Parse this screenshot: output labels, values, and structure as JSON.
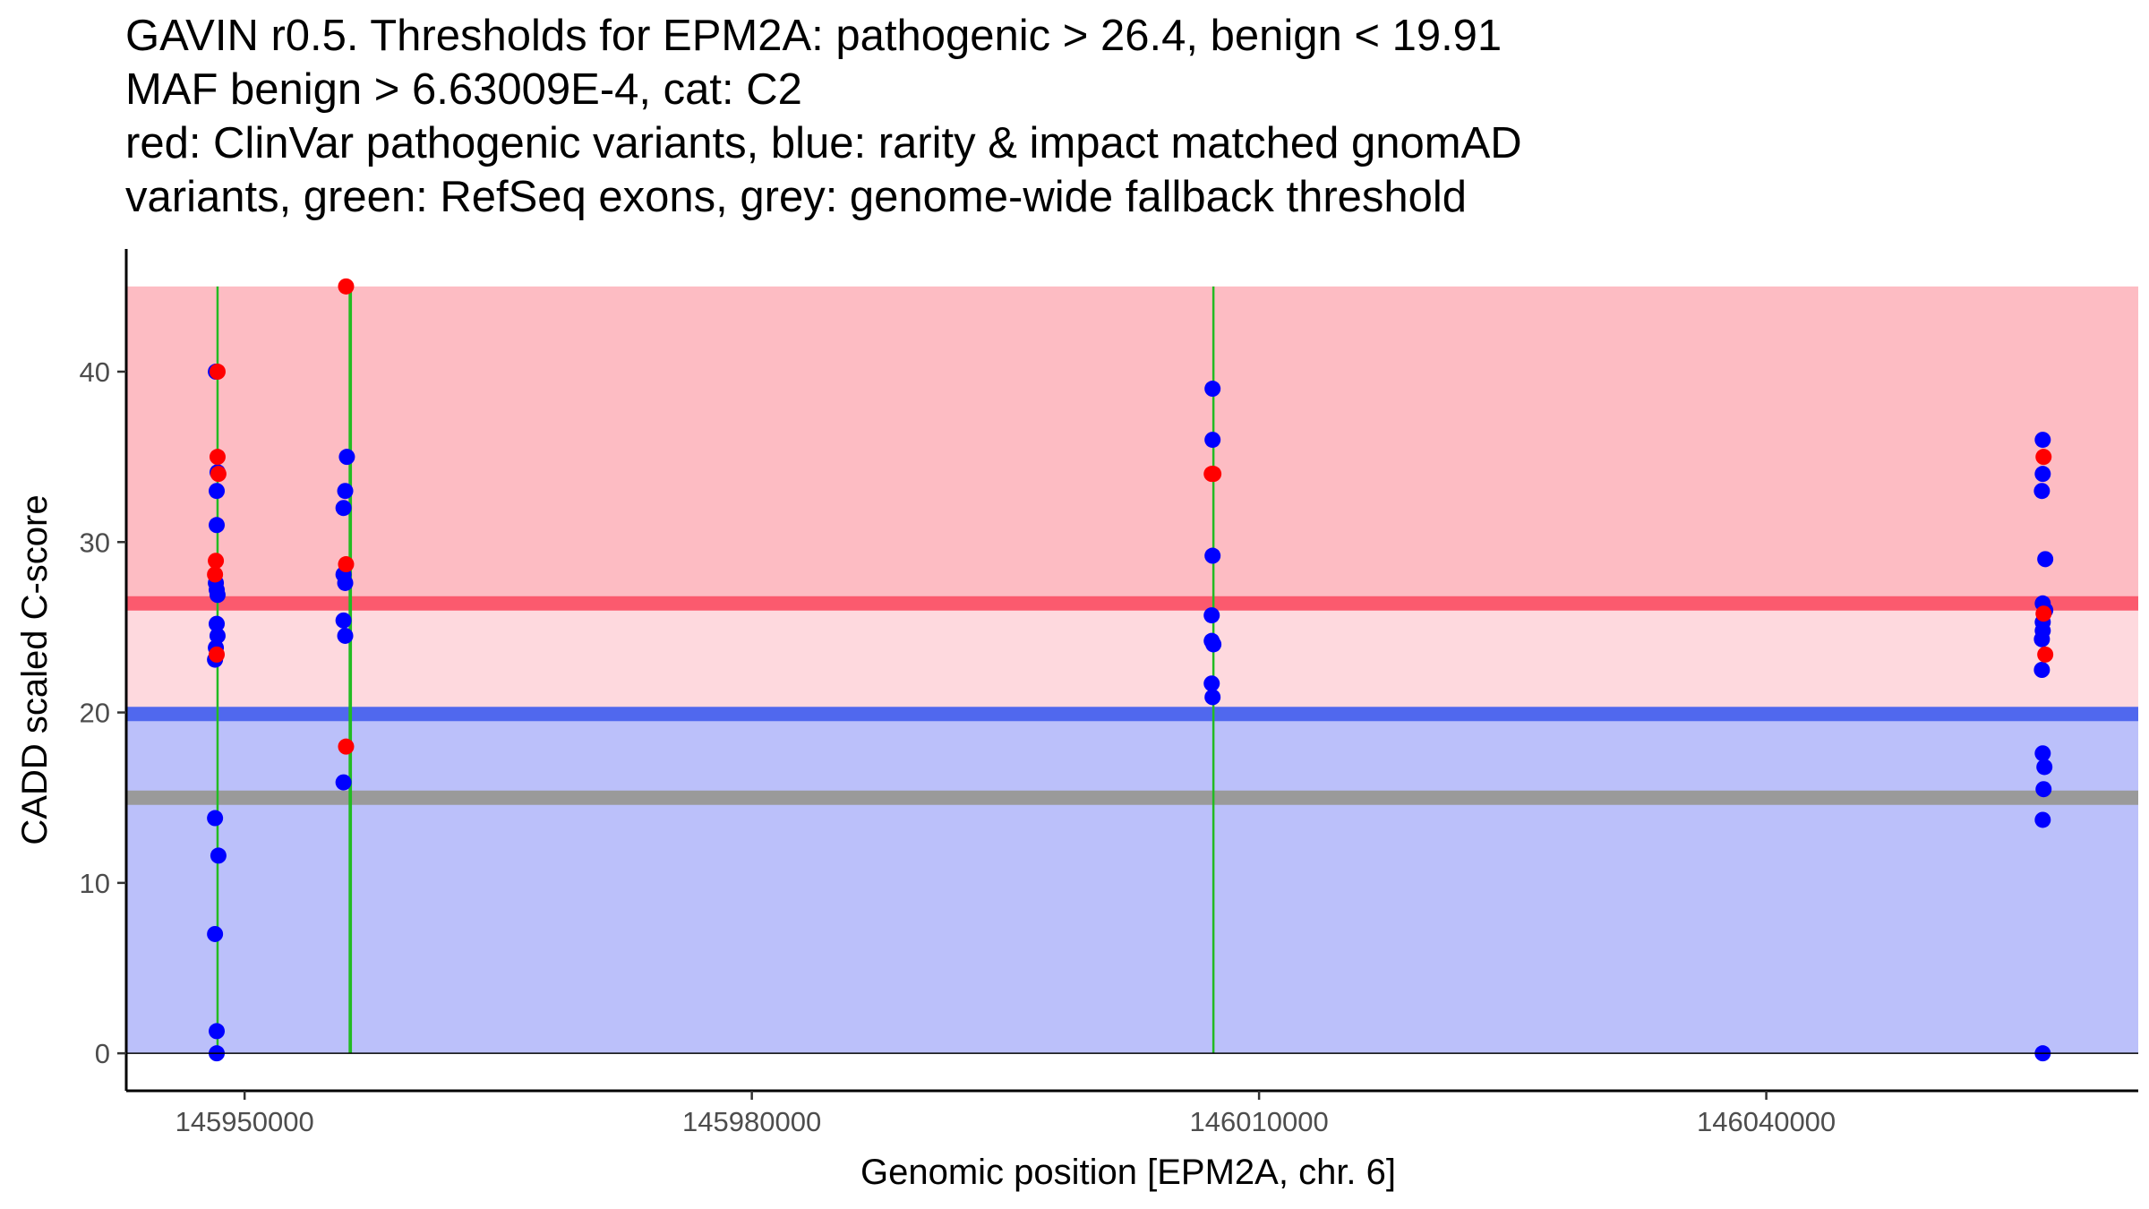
{
  "chart_data": {
    "type": "scatter",
    "title_lines": [
      "GAVIN r0.5. Thresholds for EPM2A: pathogenic > 26.4, benign < 19.91",
      "MAF benign > 6.63009E-4, cat: C2",
      "red: ClinVar pathogenic variants, blue: rarity & impact matched gnomAD",
      "variants, green: RefSeq exons, grey: genome-wide fallback threshold"
    ],
    "xlabel": "Genomic position [EPM2A, chr. 6]",
    "ylabel": "CADD scaled C-score",
    "xlim": [
      145943000,
      146062000
    ],
    "ylim": [
      -2.2,
      47.2
    ],
    "x_ticks": [
      {
        "value": 145950000,
        "label": "145950000"
      },
      {
        "value": 145980000,
        "label": "145980000"
      },
      {
        "value": 146010000,
        "label": "146010000"
      },
      {
        "value": 146040000,
        "label": "146040000"
      }
    ],
    "y_ticks": [
      {
        "value": 0,
        "label": "0"
      },
      {
        "value": 10,
        "label": "10"
      },
      {
        "value": 20,
        "label": "20"
      },
      {
        "value": 30,
        "label": "30"
      },
      {
        "value": 40,
        "label": "40"
      }
    ],
    "thresholds": {
      "pathogenic": 26.4,
      "benign": 19.91,
      "genome_wide_fallback": 15,
      "maf_benign": "6.63009E-4",
      "category": "C2"
    },
    "region_top": 45,
    "region_x_range": [
      145943000,
      146062000
    ],
    "colors": {
      "pathogenic_region": "#fdbcc3",
      "mid_region": "#fed9de",
      "benign_region": "#bbc0fa",
      "pathogenic_line": "#fb5a6e",
      "benign_line": "#5068ee",
      "fallback_line": "#9a9a9a",
      "exon": "#22bb22",
      "pathogenic_point": "#ff0000",
      "benign_point": "#0000ff"
    },
    "exons": [
      {
        "start": 145948350,
        "end": 145948450
      },
      {
        "start": 145956150,
        "end": 145956350
      },
      {
        "start": 146007250,
        "end": 146007350
      }
    ],
    "series": [
      {
        "name": "gnomAD matched variants",
        "color": "#0000ff",
        "points": [
          [
            145948300,
            27.6
          ],
          [
            145948350,
            27.2
          ],
          [
            145948400,
            26.9
          ],
          [
            145948350,
            25.2
          ],
          [
            145948400,
            24.5
          ],
          [
            145948300,
            23.8
          ],
          [
            145948250,
            23.1
          ],
          [
            145948350,
            31.0
          ],
          [
            145948350,
            33.0
          ],
          [
            145948400,
            34.1
          ],
          [
            145948300,
            40.0
          ],
          [
            145948250,
            13.8
          ],
          [
            145948450,
            11.6
          ],
          [
            145948250,
            7.0
          ],
          [
            145948350,
            1.3
          ],
          [
            145948350,
            0.0
          ],
          [
            145956050,
            35.0
          ],
          [
            145955950,
            33.0
          ],
          [
            145955850,
            32.0
          ],
          [
            145955850,
            28.1
          ],
          [
            145955950,
            27.6
          ],
          [
            145955850,
            25.4
          ],
          [
            145955950,
            24.5
          ],
          [
            145955850,
            15.9
          ],
          [
            146007250,
            39.0
          ],
          [
            146007250,
            36.0
          ],
          [
            146007250,
            29.2
          ],
          [
            146007200,
            25.7
          ],
          [
            146007200,
            24.2
          ],
          [
            146007300,
            24.0
          ],
          [
            146007200,
            21.7
          ],
          [
            146007250,
            20.9
          ],
          [
            146056350,
            36.0
          ],
          [
            146056350,
            34.0
          ],
          [
            146056300,
            33.0
          ],
          [
            146056500,
            29.0
          ],
          [
            146056350,
            26.4
          ],
          [
            146056500,
            26.0
          ],
          [
            146056350,
            25.3
          ],
          [
            146056350,
            24.8
          ],
          [
            146056300,
            24.3
          ],
          [
            146056300,
            22.5
          ],
          [
            146056350,
            17.6
          ],
          [
            146056450,
            16.8
          ],
          [
            146056400,
            15.5
          ],
          [
            146056350,
            13.7
          ],
          [
            146056350,
            0.0
          ]
        ]
      },
      {
        "name": "ClinVar pathogenic variants",
        "color": "#ff0000",
        "points": [
          [
            145948400,
            40.0
          ],
          [
            145948400,
            35.0
          ],
          [
            145948450,
            34.0
          ],
          [
            145948300,
            28.9
          ],
          [
            145948250,
            28.1
          ],
          [
            145948350,
            23.4
          ],
          [
            145956000,
            45.0
          ],
          [
            145956000,
            28.7
          ],
          [
            145956000,
            18.0
          ],
          [
            146007200,
            34.0
          ],
          [
            146007300,
            34.0
          ],
          [
            146056400,
            35.0
          ],
          [
            146056400,
            25.8
          ],
          [
            146056500,
            23.4
          ]
        ]
      }
    ]
  }
}
